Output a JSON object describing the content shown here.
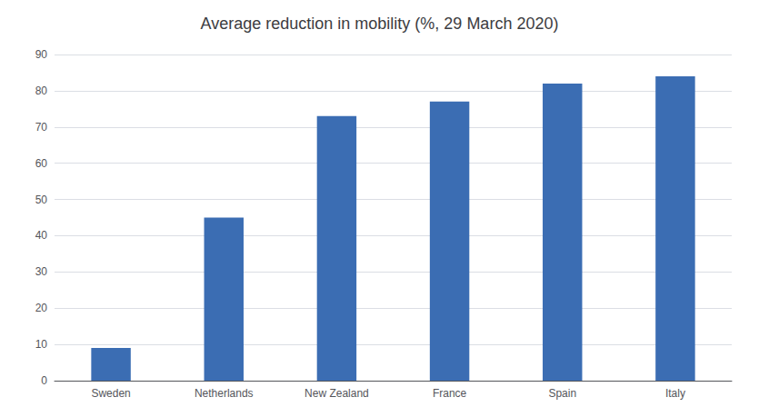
{
  "chart_data": {
    "type": "bar",
    "title": "Average reduction in mobility (%, 29 March 2020)",
    "categories": [
      "Sweden",
      "Netherlands",
      "New Zealand",
      "France",
      "Spain",
      "Italy"
    ],
    "values": [
      9,
      45,
      73,
      77,
      82,
      84
    ],
    "color": "#3B6DB3",
    "ylim": [
      0,
      90
    ],
    "yticks": [
      0,
      10,
      20,
      30,
      40,
      50,
      60,
      70,
      80,
      90
    ],
    "grid": true
  }
}
